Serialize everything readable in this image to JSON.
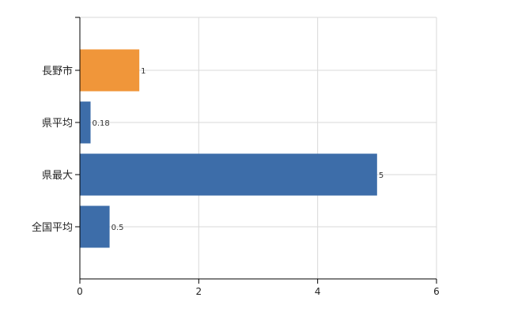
{
  "chart_data": {
    "type": "bar",
    "orientation": "horizontal",
    "title": "",
    "xlabel": "",
    "ylabel": "",
    "categories": [
      "長野市",
      "県平均",
      "県最大",
      "全国平均"
    ],
    "values": [
      1,
      0.18,
      5,
      0.5
    ],
    "data_labels": [
      "1",
      "0.18",
      "5",
      "0.5"
    ],
    "bar_colors": [
      "#F0963A",
      "#3D6DA9",
      "#3D6DA9",
      "#3D6DA9"
    ],
    "xlim": [
      0,
      6
    ],
    "xticks": [
      0,
      2,
      4,
      6
    ],
    "xtick_labels": [
      "0",
      "2",
      "4",
      "6"
    ],
    "grid": true,
    "legend": "none"
  }
}
